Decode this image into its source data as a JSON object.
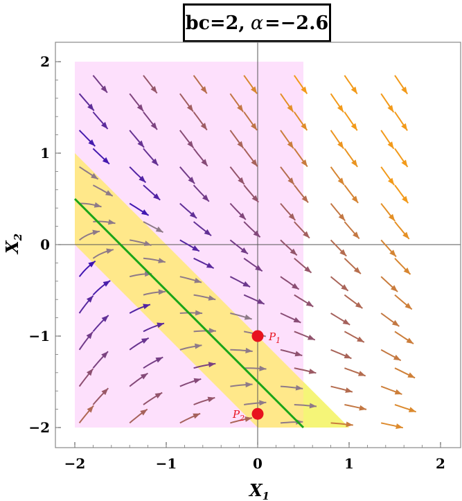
{
  "title": {
    "prefix": "bc=2,",
    "symbol": "α",
    "suffix": "=−2.6"
  },
  "axes": {
    "xlabel": "X",
    "xlabel_sub": "1",
    "ylabel": "X",
    "ylabel_sub": "2",
    "xlim": [
      -2.2,
      2.2
    ],
    "ylim": [
      -2.2,
      2.2
    ],
    "xticks": [
      {
        "v": -2,
        "label": "−2"
      },
      {
        "v": -1,
        "label": "−1"
      },
      {
        "v": 0,
        "label": "0"
      },
      {
        "v": 1,
        "label": "1"
      },
      {
        "v": 2,
        "label": "2"
      }
    ],
    "yticks": [
      {
        "v": 2,
        "label": "2"
      },
      {
        "v": 1,
        "label": "1"
      },
      {
        "v": 0,
        "label": "0"
      },
      {
        "v": -1,
        "label": "−1"
      },
      {
        "v": -2,
        "label": "−2"
      }
    ]
  },
  "regions": {
    "pink_rect": {
      "x": [
        -2,
        0.5
      ],
      "y": [
        -2,
        2
      ],
      "color": "#fde0fc"
    },
    "yellow_band": {
      "vertices": [
        [
          -2,
          1
        ],
        [
          -2,
          0
        ],
        [
          0,
          -1.5
        ],
        [
          1,
          -2
        ],
        [
          0,
          -2
        ],
        [
          0.5,
          -2
        ]
      ],
      "color": "#ffe88a",
      "tip_color": "#f5f578"
    }
  },
  "nullcline": {
    "color": "#1aa519",
    "from": [
      -2,
      0.5
    ],
    "to": [
      0.5,
      -2
    ]
  },
  "points": [
    {
      "name": "P1",
      "label": "P",
      "sub": "1",
      "x": 0,
      "y": -1,
      "color": "#e8121e"
    },
    {
      "name": "P2",
      "label": "P",
      "sub": "2",
      "x": 0,
      "y": -1.85,
      "color": "#e8121e"
    }
  ],
  "colors": {
    "slow": "#3a12b8",
    "fast": "#f29a1a",
    "inband": "#8e7a88",
    "axis": "#555555",
    "frame": "#888888"
  }
}
